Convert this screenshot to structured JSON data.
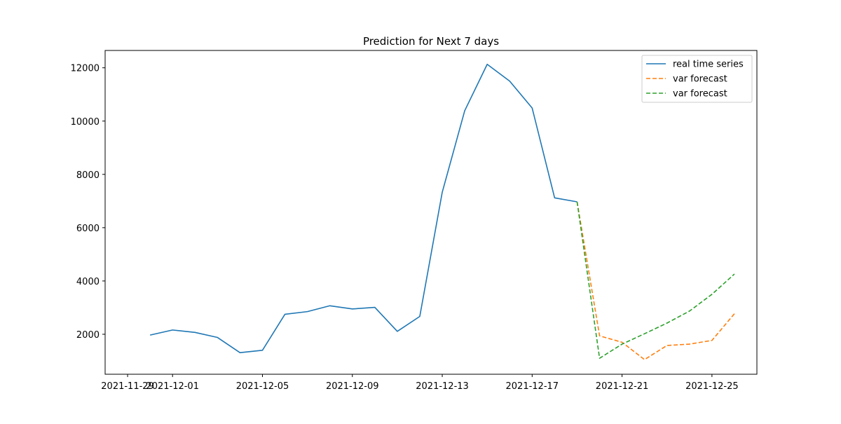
{
  "chart_data": {
    "type": "line",
    "title": "Prediction for Next 7 days",
    "xlabel": "",
    "ylabel": "",
    "x_axis_type": "date",
    "xlim": [
      "2021-11-28",
      "2021-12-27"
    ],
    "ylim": [
      500,
      12650
    ],
    "x_ticks": [
      "2021-11-29",
      "2021-12-01",
      "2021-12-05",
      "2021-12-09",
      "2021-12-13",
      "2021-12-17",
      "2021-12-21",
      "2021-12-25"
    ],
    "y_ticks": [
      2000,
      4000,
      6000,
      8000,
      10000,
      12000
    ],
    "grid": false,
    "legend_position": "top-right",
    "series": [
      {
        "name": "real time series",
        "color": "#1f77b4",
        "style": "solid",
        "x": [
          "2021-11-30",
          "2021-12-01",
          "2021-12-02",
          "2021-12-03",
          "2021-12-04",
          "2021-12-05",
          "2021-12-06",
          "2021-12-07",
          "2021-12-08",
          "2021-12-09",
          "2021-12-10",
          "2021-12-11",
          "2021-12-12",
          "2021-12-13",
          "2021-12-14",
          "2021-12-15",
          "2021-12-16",
          "2021-12-17",
          "2021-12-18",
          "2021-12-19"
        ],
        "values": [
          1970,
          2160,
          2070,
          1880,
          1310,
          1400,
          2750,
          2850,
          3070,
          2950,
          3010,
          2110,
          2670,
          7330,
          10390,
          12130,
          11500,
          10490,
          7120,
          6970
        ]
      },
      {
        "name": "var forecast",
        "color": "#ff7f0e",
        "style": "dashed",
        "x": [
          "2021-12-19",
          "2021-12-20",
          "2021-12-21",
          "2021-12-22",
          "2021-12-23",
          "2021-12-24",
          "2021-12-25",
          "2021-12-26"
        ],
        "values": [
          6970,
          1940,
          1700,
          1050,
          1580,
          1630,
          1770,
          2770
        ]
      },
      {
        "name": "var forecast",
        "color": "#2ca02c",
        "style": "dashed",
        "x": [
          "2021-12-19",
          "2021-12-20",
          "2021-12-21",
          "2021-12-22",
          "2021-12-23",
          "2021-12-24",
          "2021-12-25",
          "2021-12-26"
        ],
        "values": [
          6970,
          1100,
          1630,
          2020,
          2420,
          2870,
          3500,
          4260
        ]
      }
    ]
  }
}
